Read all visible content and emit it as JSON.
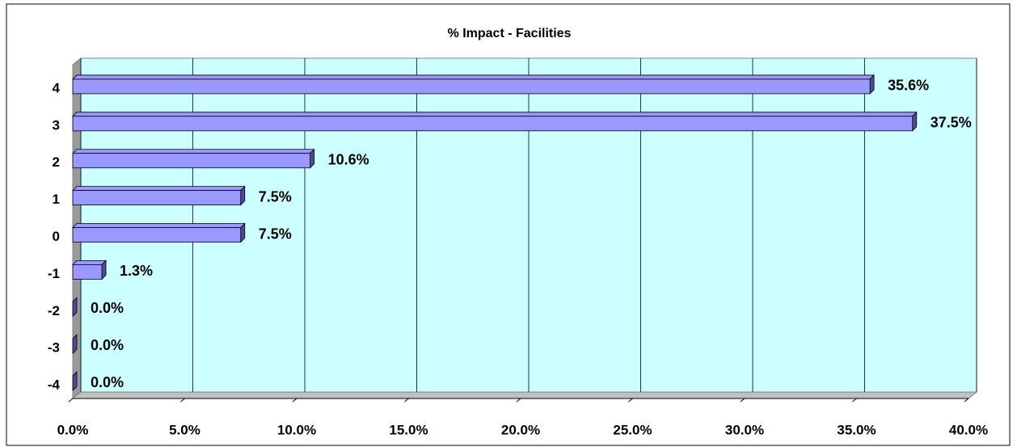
{
  "chart_data": {
    "type": "bar",
    "orientation": "horizontal",
    "title": "% Impact - Facilities",
    "categories": [
      "4",
      "3",
      "2",
      "1",
      "0",
      "-1",
      "-2",
      "-3",
      "-4"
    ],
    "values": [
      35.6,
      37.5,
      10.6,
      7.5,
      7.5,
      1.3,
      0,
      0,
      0
    ],
    "value_labels": [
      "35.6%",
      "37.5%",
      "10.6%",
      "7.5%",
      "7.5%",
      "1.3%",
      "0.0%",
      "0.0%",
      "0.0%"
    ],
    "color": "#9999ff",
    "xlim": [
      0,
      40
    ],
    "xticks": [
      {
        "value": 0,
        "label": "0.0%"
      },
      {
        "value": 5,
        "label": "5.0%"
      },
      {
        "value": 10,
        "label": "10.0%"
      },
      {
        "value": 15,
        "label": "15.0%"
      },
      {
        "value": 20,
        "label": "20.0%"
      },
      {
        "value": 25,
        "label": "25.0%"
      },
      {
        "value": 30,
        "label": "30.0%"
      },
      {
        "value": 35,
        "label": "35.0%"
      },
      {
        "value": 40,
        "label": "40.0%"
      }
    ],
    "grid": true
  }
}
